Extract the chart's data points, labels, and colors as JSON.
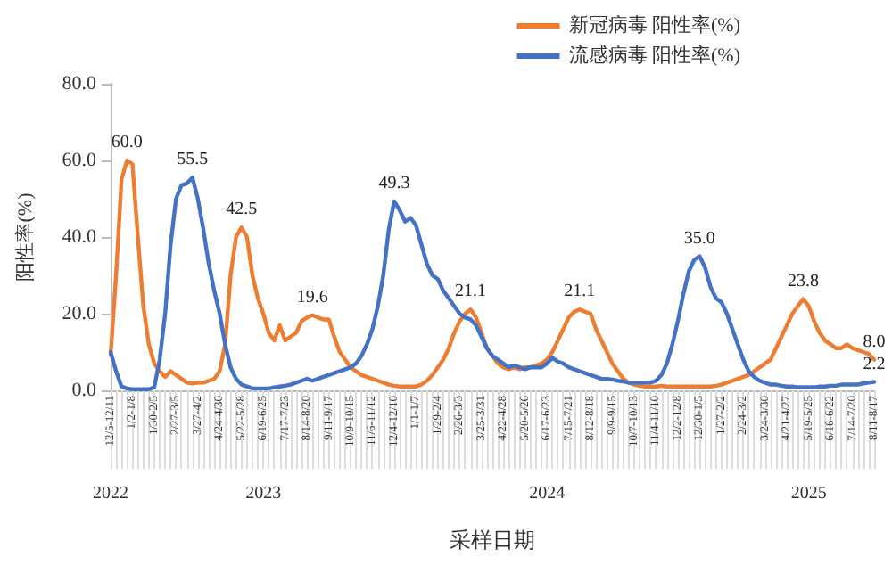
{
  "chart_data": {
    "type": "line",
    "xlabel": "采样日期",
    "ylabel": "阳性率(%)",
    "categories": [
      "12/5-12/11",
      null,
      null,
      null,
      "1/2-1/8",
      null,
      null,
      null,
      "1/30-2/5",
      null,
      null,
      null,
      "2/27-3/5",
      null,
      null,
      null,
      "3/27-4/2",
      null,
      null,
      null,
      "4/24-4/30",
      null,
      null,
      null,
      "5/22-5/28",
      null,
      null,
      null,
      "6/19-6/25",
      null,
      null,
      null,
      "7/17-7/23",
      null,
      null,
      null,
      "8/14-8/20",
      null,
      null,
      null,
      "9/11-9/17",
      null,
      null,
      null,
      "10/9-10/15",
      null,
      null,
      null,
      "11/6-11/12",
      null,
      null,
      null,
      "12/4-12/10",
      null,
      null,
      null,
      "1/1-1/7",
      null,
      null,
      null,
      "1/29-2/4",
      null,
      null,
      null,
      "2/26-3/3",
      null,
      null,
      null,
      "3/25-3/31",
      null,
      null,
      null,
      "4/22-4/28",
      null,
      null,
      null,
      "5/20-5/26",
      null,
      null,
      null,
      "6/17-6/23",
      null,
      null,
      null,
      "7/15-7/21",
      null,
      null,
      null,
      "8/12-8/18",
      null,
      null,
      null,
      "9/9-9/15",
      null,
      null,
      null,
      "10/7-10/13",
      null,
      null,
      null,
      "11/4-11/10",
      null,
      null,
      null,
      "12/2-12/8",
      null,
      null,
      null,
      "12/30-1/5",
      null,
      null,
      null,
      "1/27-2/2",
      null,
      null,
      null,
      "2/24-3/2",
      null,
      null,
      null,
      "3/24-3/30",
      null,
      null,
      null,
      "4/21-4/27",
      null,
      null,
      null,
      "5/19-5/25",
      null,
      null,
      null,
      "6/16-6/22",
      null,
      null,
      null,
      "7/14-7/20",
      null,
      null,
      null,
      "8/11-8/17"
    ],
    "series": [
      {
        "name": "新冠病毒 阳性率(%)",
        "color": "#ed7d31",
        "values": [
          9.2,
          30,
          55,
          60.0,
          59,
          40,
          22,
          12,
          7,
          5,
          3.5,
          5,
          4,
          3,
          2,
          1.8,
          2,
          2,
          2.5,
          3,
          5,
          12,
          30,
          40,
          42.5,
          40,
          30,
          24,
          20,
          15,
          13,
          17,
          13,
          14,
          15,
          18,
          19,
          19.6,
          19,
          18.5,
          18.5,
          14,
          10,
          8,
          6,
          5,
          4,
          3.5,
          3,
          2.5,
          2,
          1.5,
          1.2,
          1,
          1,
          1,
          1,
          1.5,
          2.5,
          4,
          6,
          8,
          11,
          15,
          18,
          20,
          21.1,
          19,
          15,
          11,
          9,
          7,
          6,
          5.5,
          6,
          5.5,
          6,
          6,
          6.5,
          7,
          8,
          10,
          13,
          16,
          19,
          20.5,
          21.1,
          20.5,
          20,
          16,
          13,
          10,
          7,
          5,
          3,
          2,
          1.5,
          1.2,
          1,
          1,
          1,
          1.2,
          1,
          1,
          1,
          1,
          1,
          1,
          1,
          1,
          1,
          1.2,
          1.5,
          2,
          2.5,
          3,
          3.5,
          4,
          5,
          6,
          7,
          8,
          11,
          14,
          17,
          20,
          22,
          23.8,
          22,
          18,
          15,
          13,
          12,
          11,
          11,
          12,
          11,
          10.5,
          10,
          9.5,
          8.0
        ],
        "value_labels": [
          null,
          null,
          null,
          "60.0",
          null,
          null,
          null,
          null,
          null,
          null,
          null,
          null,
          null,
          null,
          null,
          null,
          null,
          null,
          null,
          null,
          null,
          null,
          null,
          null,
          "42.5",
          null,
          null,
          null,
          null,
          null,
          null,
          null,
          null,
          null,
          null,
          null,
          null,
          "19.6",
          null,
          null,
          null,
          null,
          null,
          null,
          null,
          null,
          null,
          null,
          null,
          null,
          null,
          null,
          null,
          null,
          null,
          null,
          null,
          null,
          null,
          null,
          null,
          null,
          null,
          null,
          null,
          null,
          "21.1",
          null,
          null,
          null,
          null,
          null,
          null,
          null,
          null,
          null,
          null,
          null,
          null,
          null,
          null,
          null,
          null,
          null,
          null,
          null,
          "21.1",
          null,
          null,
          null,
          null,
          null,
          null,
          null,
          null,
          null,
          null,
          null,
          null,
          null,
          null,
          null,
          null,
          null,
          null,
          null,
          null,
          null,
          null,
          null,
          null,
          null,
          null,
          null,
          null,
          null,
          null,
          null,
          null,
          null,
          null,
          null,
          null,
          null,
          null,
          null,
          null,
          "23.8",
          null,
          null,
          null,
          null,
          null,
          null,
          null,
          null,
          null,
          null,
          null,
          null,
          "8.0"
        ]
      },
      {
        "name": "流感病毒 阳性率(%)",
        "color": "#4472c4",
        "values": [
          10,
          5,
          1,
          0.5,
          0.3,
          0.3,
          0.3,
          0.3,
          0.8,
          8,
          20,
          38,
          50,
          53.5,
          54,
          55.5,
          50,
          42,
          33,
          26,
          20,
          12,
          6,
          3,
          1.5,
          1,
          0.5,
          0.5,
          0.5,
          0.5,
          0.8,
          1,
          1.2,
          1.5,
          2,
          2.5,
          3,
          2.5,
          3,
          3.5,
          4,
          4.5,
          5,
          5.5,
          6,
          7,
          9,
          12,
          16,
          22,
          30,
          42,
          49.3,
          47,
          44,
          45,
          43,
          38,
          33,
          30,
          29,
          26,
          24,
          22,
          20,
          19,
          18.5,
          17,
          14,
          11,
          9,
          8,
          7,
          6,
          6.5,
          6,
          5.5,
          6,
          6,
          6,
          7,
          8.5,
          7.5,
          7,
          6,
          5.5,
          5,
          4.5,
          4,
          3.5,
          3,
          3,
          2.8,
          2.5,
          2.3,
          2,
          2,
          2,
          2,
          2,
          2.5,
          4,
          7,
          12,
          18,
          25,
          31,
          34,
          35.0,
          32,
          27,
          24,
          23,
          20,
          16,
          12,
          8,
          5,
          3.5,
          2.5,
          2,
          1.5,
          1.5,
          1.2,
          1,
          1,
          0.8,
          0.8,
          0.8,
          0.8,
          1,
          1,
          1.2,
          1.2,
          1.5,
          1.5,
          1.5,
          1.5,
          1.8,
          2,
          2.2
        ],
        "value_labels": [
          null,
          null,
          null,
          null,
          null,
          null,
          null,
          null,
          null,
          null,
          null,
          null,
          null,
          null,
          null,
          "55.5",
          null,
          null,
          null,
          null,
          null,
          null,
          null,
          null,
          null,
          null,
          null,
          null,
          null,
          null,
          null,
          null,
          null,
          null,
          null,
          null,
          null,
          null,
          null,
          null,
          null,
          null,
          null,
          null,
          null,
          null,
          null,
          null,
          null,
          null,
          null,
          null,
          "49.3",
          null,
          null,
          null,
          null,
          null,
          null,
          null,
          null,
          null,
          null,
          null,
          null,
          null,
          null,
          null,
          null,
          null,
          null,
          null,
          null,
          null,
          null,
          null,
          null,
          null,
          null,
          null,
          null,
          null,
          null,
          null,
          null,
          null,
          null,
          null,
          null,
          null,
          null,
          null,
          null,
          null,
          null,
          null,
          null,
          null,
          null,
          null,
          null,
          null,
          null,
          null,
          null,
          null,
          null,
          null,
          "35.0",
          null,
          null,
          null,
          null,
          null,
          null,
          null,
          null,
          null,
          null,
          null,
          null,
          null,
          null,
          null,
          null,
          null,
          null,
          null,
          null,
          null,
          null,
          null,
          null,
          null,
          null,
          null,
          null,
          null,
          null,
          null,
          "2.2"
        ]
      }
    ],
    "ylim": [
      0,
      80
    ],
    "yticks": [
      {
        "value": 0,
        "label": "0.0"
      },
      {
        "value": 20,
        "label": "20.0"
      },
      {
        "value": 40,
        "label": "40.0"
      },
      {
        "value": 60,
        "label": "60.0"
      },
      {
        "value": 80,
        "label": "80.0"
      }
    ],
    "annotations": [
      {
        "text": "2022",
        "x": "12/5-12/11"
      },
      {
        "text": "2023",
        "x": "6/19-6/25"
      },
      {
        "text": "2024",
        "x": "6/17-6/23"
      },
      {
        "text": "2025",
        "x": "5/19-5/25"
      }
    ],
    "grid": false,
    "legend": "top right",
    "marker": "none",
    "line_style": "solid"
  }
}
